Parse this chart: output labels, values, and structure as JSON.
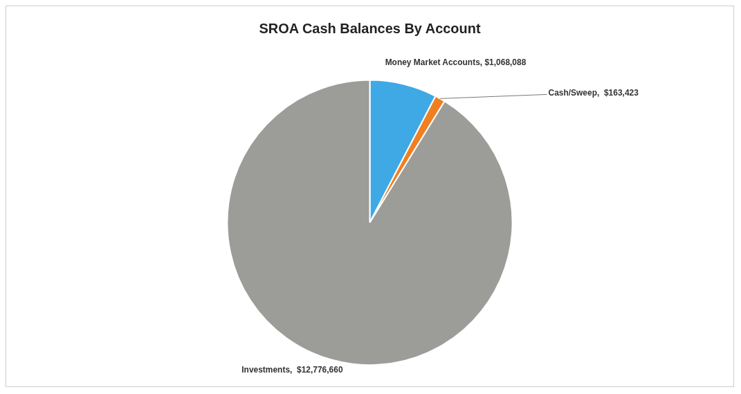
{
  "chart_data": {
    "type": "pie",
    "title": "SROA Cash Balances By Account",
    "categories": [
      "Money Market Accounts",
      "Cash/Sweep",
      "Investments"
    ],
    "values": [
      1068088,
      163423,
      12776660
    ],
    "value_labels": [
      "$1,068,088",
      "$163,423",
      "$12,776,660"
    ],
    "colors": [
      "#3fa9e6",
      "#f07f22",
      "#9c9c98"
    ],
    "legend": false
  }
}
